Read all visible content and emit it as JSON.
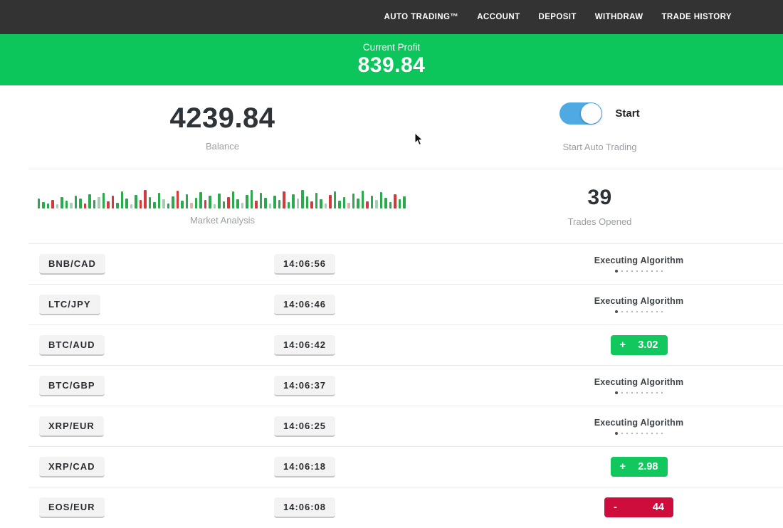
{
  "nav": {
    "items": [
      {
        "label": "AUTO TRADING™"
      },
      {
        "label": "ACCOUNT"
      },
      {
        "label": "DEPOSIT"
      },
      {
        "label": "WITHDRAW"
      },
      {
        "label": "TRADE HISTORY"
      }
    ]
  },
  "profit_banner": {
    "label": "Current Profit",
    "value": "839.84"
  },
  "stats": {
    "balance": {
      "value": "4239.84",
      "label": "Balance"
    },
    "auto_trading": {
      "toggle_label": "Start",
      "label": "Start Auto Trading",
      "enabled": true
    },
    "market_analysis": {
      "label": "Market Analysis"
    },
    "trades_opened": {
      "value": "39",
      "label": "Trades Opened"
    }
  },
  "trades": [
    {
      "pair": "BNB/CAD",
      "time": "14:06:56",
      "status": "executing",
      "status_label": "Executing Algorithm"
    },
    {
      "pair": "LTC/JPY",
      "time": "14:06:46",
      "status": "executing",
      "status_label": "Executing Algorithm"
    },
    {
      "pair": "BTC/AUD",
      "time": "14:06:42",
      "status": "profit",
      "sign": "+",
      "value": "3.02"
    },
    {
      "pair": "BTC/GBP",
      "time": "14:06:37",
      "status": "executing",
      "status_label": "Executing Algorithm"
    },
    {
      "pair": "XRP/EUR",
      "time": "14:06:25",
      "status": "executing",
      "status_label": "Executing Algorithm"
    },
    {
      "pair": "XRP/CAD",
      "time": "14:06:18",
      "status": "profit",
      "sign": "+",
      "value": "2.98"
    },
    {
      "pair": "EOS/EUR",
      "time": "14:06:08",
      "status": "loss",
      "sign": "-",
      "value": "44"
    }
  ],
  "market_bars": [
    [
      14,
      "g"
    ],
    [
      9,
      "g"
    ],
    [
      7,
      "g"
    ],
    [
      12,
      "r"
    ],
    [
      6,
      "fg"
    ],
    [
      16,
      "g"
    ],
    [
      11,
      "g"
    ],
    [
      8,
      "fg"
    ],
    [
      18,
      "g"
    ],
    [
      14,
      "g"
    ],
    [
      7,
      "r"
    ],
    [
      20,
      "g"
    ],
    [
      12,
      "g"
    ],
    [
      16,
      "fg"
    ],
    [
      22,
      "g"
    ],
    [
      10,
      "r"
    ],
    [
      18,
      "r"
    ],
    [
      8,
      "g"
    ],
    [
      24,
      "g"
    ],
    [
      14,
      "g"
    ],
    [
      6,
      "fg"
    ],
    [
      19,
      "g"
    ],
    [
      12,
      "r"
    ],
    [
      26,
      "r"
    ],
    [
      16,
      "g"
    ],
    [
      9,
      "g"
    ],
    [
      22,
      "g"
    ],
    [
      13,
      "fg"
    ],
    [
      7,
      "g"
    ],
    [
      17,
      "g"
    ],
    [
      25,
      "r"
    ],
    [
      11,
      "g"
    ],
    [
      20,
      "g"
    ],
    [
      8,
      "fr"
    ],
    [
      15,
      "g"
    ],
    [
      23,
      "g"
    ],
    [
      12,
      "r"
    ],
    [
      18,
      "g"
    ],
    [
      6,
      "fg"
    ],
    [
      21,
      "g"
    ],
    [
      10,
      "g"
    ],
    [
      16,
      "r"
    ],
    [
      24,
      "g"
    ],
    [
      13,
      "g"
    ],
    [
      8,
      "fg"
    ],
    [
      19,
      "g"
    ],
    [
      26,
      "g"
    ],
    [
      11,
      "r"
    ],
    [
      22,
      "g"
    ],
    [
      15,
      "g"
    ],
    [
      7,
      "fg"
    ],
    [
      18,
      "g"
    ],
    [
      12,
      "g"
    ],
    [
      24,
      "r"
    ],
    [
      9,
      "g"
    ],
    [
      20,
      "g"
    ],
    [
      14,
      "fg"
    ],
    [
      26,
      "g"
    ],
    [
      17,
      "g"
    ],
    [
      10,
      "r"
    ],
    [
      22,
      "g"
    ],
    [
      13,
      "g"
    ],
    [
      7,
      "fg"
    ],
    [
      19,
      "r"
    ],
    [
      24,
      "g"
    ],
    [
      11,
      "g"
    ],
    [
      16,
      "g"
    ],
    [
      8,
      "fr"
    ],
    [
      21,
      "g"
    ],
    [
      14,
      "g"
    ],
    [
      25,
      "g"
    ],
    [
      10,
      "r"
    ],
    [
      18,
      "g"
    ],
    [
      12,
      "fg"
    ],
    [
      23,
      "g"
    ],
    [
      15,
      "g"
    ],
    [
      9,
      "g"
    ],
    [
      20,
      "r"
    ],
    [
      13,
      "g"
    ],
    [
      17,
      "g"
    ]
  ],
  "colors": {
    "nav_bg": "#333333",
    "banner_green": "#0cc55b",
    "profit_green": "#12c75d",
    "loss_red": "#ce0d3d",
    "toggle_blue": "#4faae4",
    "bar_green": "#2da84e",
    "bar_red": "#d23b3b",
    "bar_green_faded": "#a9cdb2",
    "bar_red_faded": "#ddb0b0"
  }
}
